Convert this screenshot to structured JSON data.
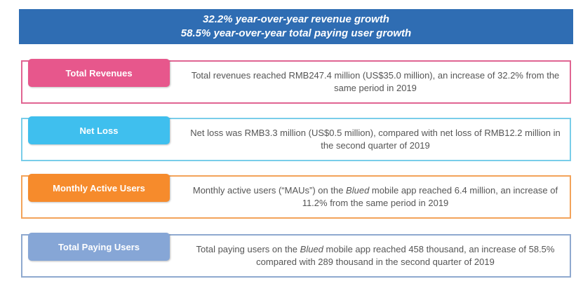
{
  "banner": {
    "line1": "32.2% year-over-year revenue growth",
    "line2": "58.5% year-over-year total paying user growth"
  },
  "cards": [
    {
      "label": "Total Revenues",
      "text_a": "Total revenues reached RMB247.4 million (US$35.0 million), an increase of 32.2% from the same period in 2019",
      "accent": "#e7578c"
    },
    {
      "label": "Net Loss",
      "text_a": "Net loss was RMB3.3 million (US$0.5 million), compared with net loss of RMB12.2 million in the second quarter of 2019",
      "accent": "#3fbfee"
    },
    {
      "label": "Monthly Active Users",
      "text_a": "Monthly active users (“MAUs”) on the ",
      "text_em": "Blued",
      "text_b": " mobile app reached 6.4 million, an increase of 11.2% from the same period in 2019",
      "accent": "#f68b2c"
    },
    {
      "label": "Total Paying Users",
      "text_a": "Total paying users on the ",
      "text_em": "Blued",
      "text_b": " mobile app reached 458 thousand, an increase of 58.5% compared with 289 thousand in the second quarter of 2019",
      "accent": "#86a6d6"
    }
  ]
}
